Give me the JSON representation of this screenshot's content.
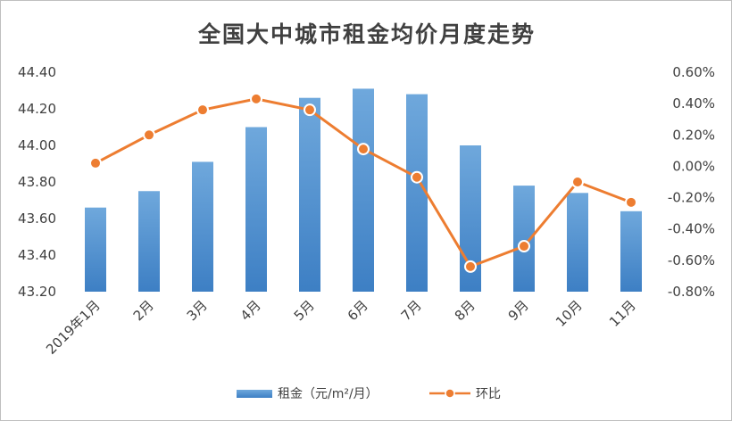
{
  "chart_data": {
    "type": "bar",
    "title": "全国大中城市租金均价月度走势",
    "categories": [
      "2019年1月",
      "2月",
      "3月",
      "4月",
      "5月",
      "6月",
      "7月",
      "8月",
      "9月",
      "10月",
      "11月"
    ],
    "series": [
      {
        "name": "租金（元/m²/月）",
        "type": "bar",
        "axis": "left",
        "color": "#5b9bd5",
        "values": [
          43.66,
          43.75,
          43.91,
          44.1,
          44.26,
          44.31,
          44.28,
          44.0,
          43.78,
          43.74,
          43.64
        ]
      },
      {
        "name": "环比",
        "type": "line",
        "axis": "right",
        "color": "#ed7d31",
        "values": [
          0.02,
          0.2,
          0.36,
          0.43,
          0.36,
          0.11,
          -0.07,
          -0.64,
          -0.51,
          -0.1,
          -0.23
        ]
      }
    ],
    "y_left": {
      "min": 43.2,
      "max": 44.4,
      "ticks": [
        "43.20",
        "43.40",
        "43.60",
        "43.80",
        "44.00",
        "44.20",
        "44.40"
      ]
    },
    "y_right": {
      "min": -0.8,
      "max": 0.6,
      "ticks": [
        "-0.80%",
        "-0.60%",
        "-0.40%",
        "-0.20%",
        "0.00%",
        "0.20%",
        "0.40%",
        "0.60%"
      ]
    },
    "grid": false,
    "legend_position": "bottom"
  }
}
